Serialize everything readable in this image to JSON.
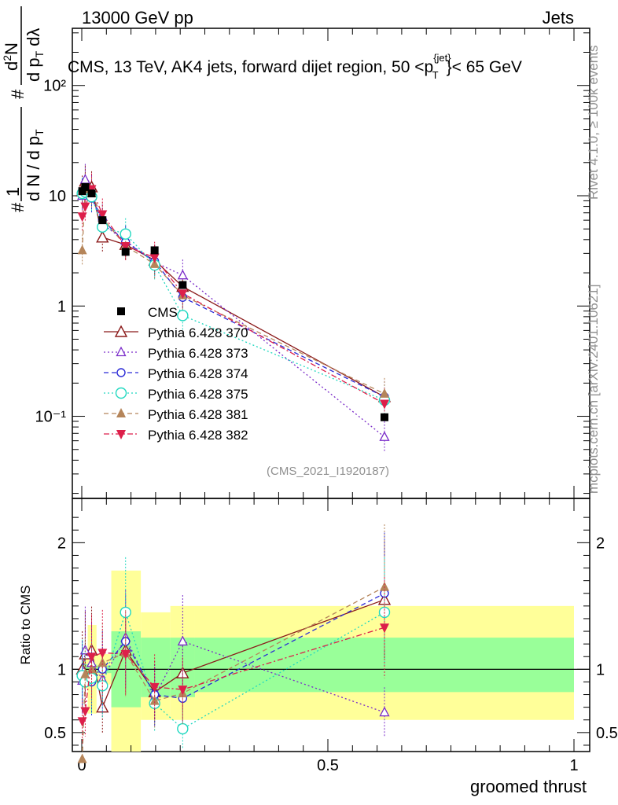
{
  "header": {
    "left": "13000 GeV pp",
    "right": "Jets",
    "title_prefix": "CMS, 13 TeV, AK4 jets, forward dijet region, 50 <p",
    "title_sup": "{jet}",
    "title_sub": "T",
    "title_suffix": "}< 65 GeV"
  },
  "side_labels": {
    "rivet": "Rivet 4.1.0, ≥ 100k events",
    "mcplots": "mcplots.cern.ch [arXiv:2401.10621]"
  },
  "analysis_id": "(CMS_2021_I1920187)",
  "yaxis_main": {
    "label_parts": [
      "#",
      "1",
      "d N / d p",
      "T",
      "#",
      "d p",
      "T",
      "d",
      "2",
      "N",
      "dλ"
    ],
    "ticks": [
      "10⁻¹",
      "1",
      "10",
      "10²"
    ]
  },
  "yaxis_ratio": {
    "label": "Ratio to CMS",
    "ticks": [
      "0.5",
      "1",
      "2"
    ]
  },
  "xaxis": {
    "label": "groomed thrust",
    "ticks": [
      "0",
      "0.5",
      "1"
    ]
  },
  "colors": {
    "cms": "#000000",
    "p370": "#8b1a1a",
    "p373": "#7a2bc9",
    "p374": "#2a2ad6",
    "p375": "#20d8c0",
    "p381": "#b5855a",
    "p382": "#dd1f4a",
    "band_stat": "#99ff99",
    "band_syst": "#ffff99"
  },
  "chart_data": {
    "type": "scatter",
    "xlabel": "groomed thrust",
    "ylabel": "1/(dN/dpT) d2N/(dpT dlambda)",
    "xlim": [
      0,
      1
    ],
    "ylim_main": [
      0.018,
      330
    ],
    "ylog": true,
    "ylim_ratio": [
      0.35,
      2.35
    ],
    "x": [
      0.001,
      0.007,
      0.02,
      0.042,
      0.089,
      0.148,
      0.205,
      0.615
    ],
    "bins": [
      [
        0,
        0.003
      ],
      [
        0.003,
        0.012
      ],
      [
        0.012,
        0.03
      ],
      [
        0.03,
        0.06
      ],
      [
        0.06,
        0.12
      ],
      [
        0.12,
        0.18
      ],
      [
        0.18,
        0.23
      ],
      [
        0.23,
        1.0
      ]
    ],
    "cms": {
      "name": "CMS",
      "values": [
        11.0,
        12.0,
        10.5,
        6.0,
        3.1,
        3.2,
        1.55,
        0.098
      ],
      "band_stat": [
        [
          0.96,
          1.04
        ],
        [
          0.96,
          1.04
        ],
        [
          0.96,
          1.04
        ],
        [
          0.97,
          1.03
        ],
        [
          0.7,
          1.3
        ],
        [
          0.78,
          1.25
        ],
        [
          0.78,
          1.25
        ],
        [
          0.82,
          1.25
        ]
      ],
      "band_syst": [
        [
          0.9,
          1.1
        ],
        [
          0.85,
          1.15
        ],
        [
          0.65,
          1.35
        ],
        [
          0.88,
          1.12
        ],
        [
          0.3,
          1.78
        ],
        [
          0.6,
          1.45
        ],
        [
          0.6,
          1.5
        ],
        [
          0.6,
          1.5
        ]
      ]
    },
    "series": [
      {
        "name": "Pythia 6.428 370",
        "key": "p370",
        "marker": "tri-up-open",
        "dash": "",
        "values": [
          11.0,
          13.5,
          12.0,
          4.2,
          3.6,
          2.6,
          1.5,
          0.15
        ]
      },
      {
        "name": "Pythia 6.428 373",
        "key": "p373",
        "marker": "tri-up-open-small",
        "dash": "2,3",
        "values": [
          10.0,
          14.0,
          11.0,
          5.5,
          3.9,
          2.5,
          1.9,
          0.065
        ]
      },
      {
        "name": "Pythia 6.428 374",
        "key": "p374",
        "marker": "circle-open",
        "dash": "6,4",
        "values": [
          10.3,
          11.0,
          9.5,
          6.0,
          3.8,
          2.55,
          1.2,
          0.15
        ]
      },
      {
        "name": "Pythia 6.428 375",
        "key": "p375",
        "marker": "circle-open-big",
        "dash": "2,3",
        "values": [
          10.5,
          10.8,
          9.8,
          5.2,
          4.5,
          2.35,
          0.82,
          0.14
        ]
      },
      {
        "name": "Pythia 6.428 381",
        "key": "p381",
        "marker": "tri-up-filled",
        "dash": "6,4",
        "values": [
          3.2,
          11.5,
          10.5,
          6.3,
          3.5,
          2.4,
          1.25,
          0.16
        ]
      },
      {
        "name": "Pythia 6.428 382",
        "key": "p382",
        "marker": "tri-down-filled",
        "dash": "7,3,2,3",
        "values": [
          6.5,
          8.0,
          11.5,
          6.8,
          3.5,
          2.75,
          1.3,
          0.13
        ]
      }
    ],
    "ratio": {
      "p370": [
        1.0,
        1.12,
        1.15,
        0.7,
        1.15,
        0.82,
        0.97,
        1.55
      ],
      "p373": [
        0.91,
        1.15,
        1.05,
        0.92,
        1.25,
        0.78,
        1.22,
        0.66
      ],
      "p374": [
        0.94,
        0.92,
        0.9,
        1.0,
        1.22,
        0.8,
        0.77,
        1.6
      ],
      "p375": [
        0.95,
        0.9,
        0.93,
        0.87,
        1.45,
        0.73,
        0.53,
        1.45
      ],
      "p381": [
        0.29,
        0.96,
        1.0,
        1.05,
        1.13,
        0.75,
        0.81,
        1.65
      ],
      "p382": [
        0.59,
        0.67,
        1.1,
        1.13,
        1.12,
        0.86,
        0.84,
        1.33
      ]
    }
  }
}
